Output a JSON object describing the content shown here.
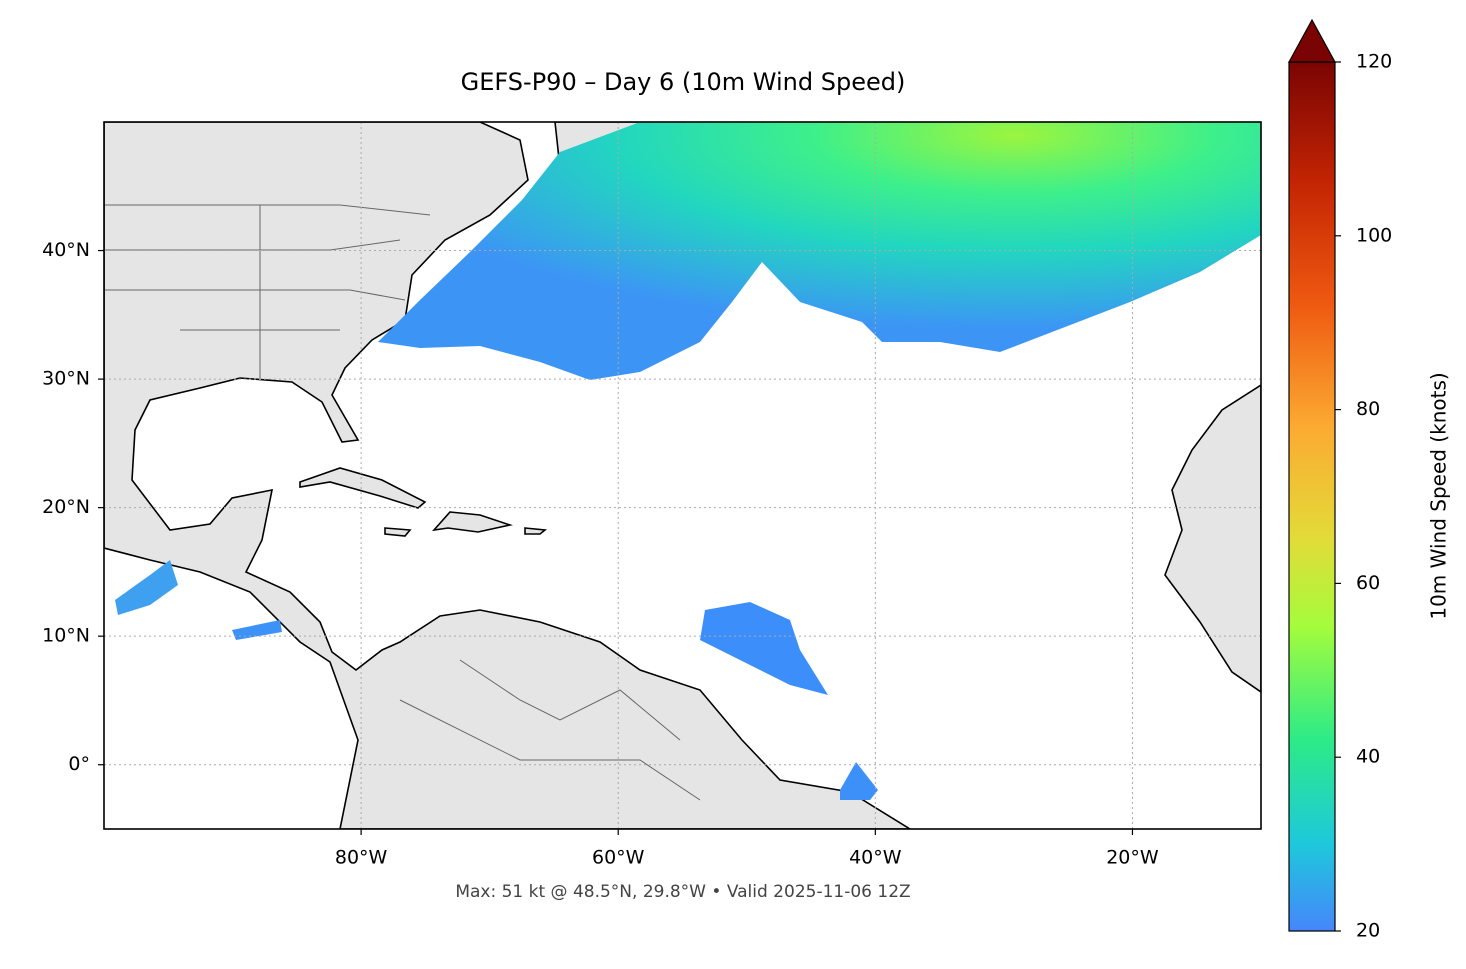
{
  "map": {
    "title": "GEFS-P90 – Day 6 (10m Wind Speed)",
    "footer": "Max: 51 kt @ 48.5°N, 29.8°W • Valid 2025-11-06 12Z",
    "xlim": [
      -100,
      -10
    ],
    "ylim": [
      -5,
      50
    ],
    "xticks": [
      {
        "value": -80,
        "label": "80°W"
      },
      {
        "value": -60,
        "label": "60°W"
      },
      {
        "value": -40,
        "label": "40°W"
      },
      {
        "value": -20,
        "label": "20°W"
      }
    ],
    "yticks": [
      {
        "value": 0,
        "label": "0°"
      },
      {
        "value": 10,
        "label": "10°N"
      },
      {
        "value": 20,
        "label": "20°N"
      },
      {
        "value": 30,
        "label": "30°N"
      },
      {
        "value": 40,
        "label": "40°N"
      }
    ],
    "grid": true,
    "colorbar": {
      "label": "10m Wind Speed (knots)",
      "lim": [
        20,
        120
      ],
      "ticks": [
        20,
        40,
        60,
        80,
        100,
        120
      ]
    }
  }
}
